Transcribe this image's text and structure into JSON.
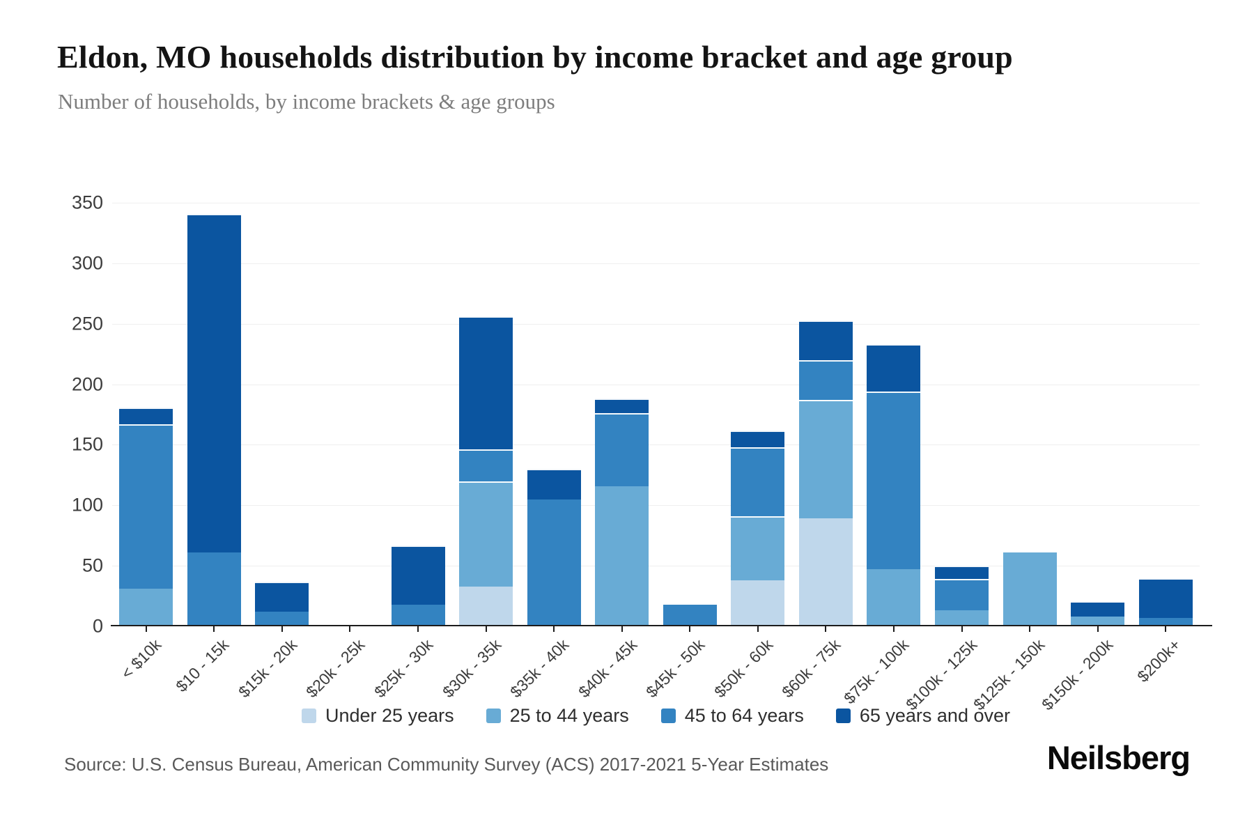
{
  "header": {
    "title": "Eldon, MO households distribution by income bracket and age group",
    "subtitle": "Number of households, by income brackets & age groups"
  },
  "y_axis": {
    "ticks": [
      350,
      300,
      250,
      200,
      150,
      100,
      50,
      0
    ]
  },
  "chart_data": {
    "type": "bar",
    "stacked": true,
    "title": "Eldon, MO households distribution by income bracket and age group",
    "xlabel": "",
    "ylabel": "Number of households",
    "ylim": [
      0,
      350
    ],
    "grid": true,
    "legend_position": "bottom",
    "categories": [
      "< $10k",
      "$10 - 15k",
      "$15k - 20k",
      "$20k - 25k",
      "$25k - 30k",
      "$30k - 35k",
      "$35k - 40k",
      "$40k - 45k",
      "$45k - 50k",
      "$50k - 60k",
      "$60k - 75k",
      "$75k - 100k",
      "$100k - 125k",
      "$125k - 150k",
      "$150k - 200k",
      "$200k+"
    ],
    "series": [
      {
        "name": "Under 25 years",
        "color": "#bfd7eb",
        "values": [
          0,
          0,
          0,
          0,
          0,
          33,
          0,
          0,
          0,
          38,
          89,
          0,
          0,
          0,
          0,
          0
        ]
      },
      {
        "name": "25 to 44 years",
        "color": "#68abd5",
        "values": [
          31,
          0,
          0,
          0,
          0,
          87,
          0,
          116,
          0,
          53,
          98,
          47,
          13,
          61,
          8,
          0
        ]
      },
      {
        "name": "45 to 64 years",
        "color": "#3383c1",
        "values": [
          136,
          61,
          12,
          0,
          18,
          26,
          105,
          60,
          18,
          57,
          33,
          147,
          26,
          0,
          0,
          7
        ]
      },
      {
        "name": "65 years and over",
        "color": "#0b55a0",
        "values": [
          14,
          280,
          25,
          0,
          49,
          110,
          25,
          12,
          0,
          14,
          33,
          39,
          11,
          0,
          13,
          33
        ]
      }
    ]
  },
  "footer": {
    "source": "Source: U.S. Census Bureau, American Community Survey (ACS) 2017-2021 5-Year Estimates",
    "brand": "Neilsberg"
  }
}
